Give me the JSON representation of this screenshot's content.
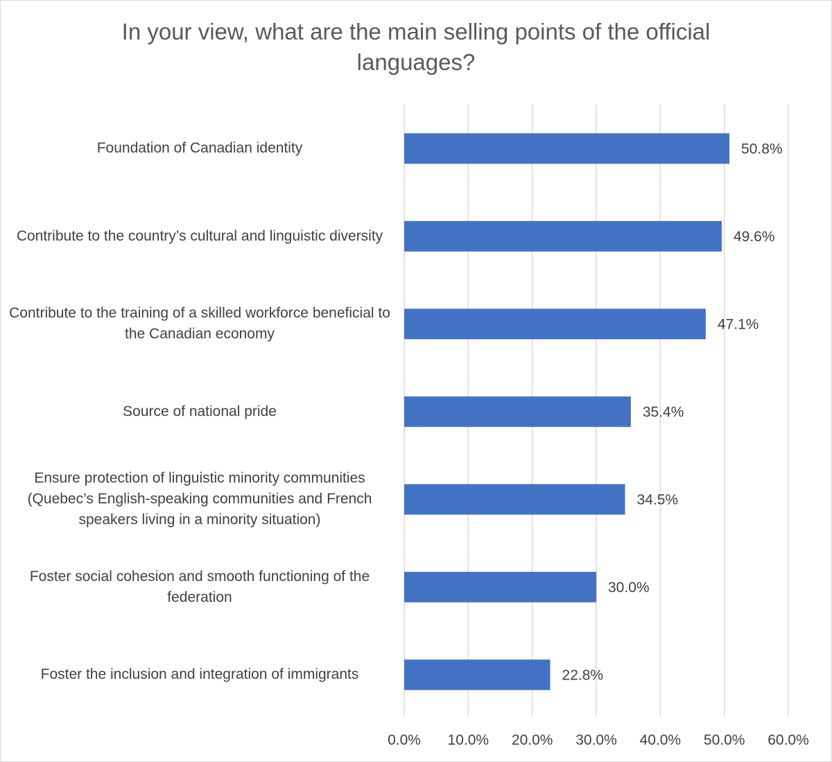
{
  "chart_data": {
    "type": "bar",
    "orientation": "horizontal",
    "title": "In your view, what are the main selling points of the official\nlanguages?",
    "xlabel": "",
    "ylabel": "",
    "xlim": [
      0,
      60
    ],
    "grid": true,
    "legend": "none",
    "x_ticks": [
      "0.0%",
      "10.0%",
      "20.0%",
      "30.0%",
      "40.0%",
      "50.0%",
      "60.0%"
    ],
    "categories": [
      "Foundation of Canadian identity",
      "Contribute to the country’s cultural and linguistic diversity",
      "Contribute to the training of a skilled workforce beneficial to the Canadian economy",
      "Source of national pride",
      "Ensure protection of linguistic minority communities (Quebec’s English-speaking communities and French speakers living in a minority situation)",
      "Foster social cohesion and smooth functioning of the federation",
      "Foster the inclusion and integration of immigrants"
    ],
    "values": [
      50.8,
      49.6,
      47.1,
      35.4,
      34.5,
      30.0,
      22.8
    ],
    "data_labels": [
      "50.8%",
      "49.6%",
      "47.1%",
      "35.4%",
      "34.5%",
      "30.0%",
      "22.8%"
    ],
    "colors": {
      "bar": "#4472c4",
      "grid": "#d9d9d9",
      "text": "#404040",
      "title": "#595959"
    }
  }
}
